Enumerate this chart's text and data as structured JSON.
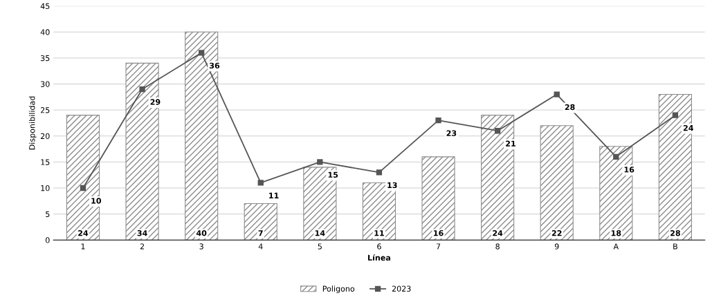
{
  "chart_data": {
    "type": "bar",
    "xlabel": "Línea",
    "ylabel": "Disponibilidad",
    "categories": [
      "1",
      "2",
      "3",
      "4",
      "5",
      "6",
      "7",
      "8",
      "9",
      "A",
      "B"
    ],
    "series": [
      {
        "name": "Poligono",
        "color": "#8c8c8c",
        "values": [
          24,
          34,
          40,
          7,
          14,
          11,
          16,
          24,
          22,
          18,
          28
        ]
      },
      {
        "name": "2023",
        "type": "line",
        "color": "#555555",
        "marker": "square",
        "values": [
          10,
          29,
          36,
          11,
          15,
          13,
          23,
          21,
          28,
          16,
          24
        ]
      }
    ],
    "ylim": [
      0,
      45
    ],
    "yticks": [
      0,
      5,
      10,
      15,
      20,
      25,
      30,
      35,
      40,
      45
    ],
    "grid": "y",
    "legend": "bottom",
    "data_labels": true
  }
}
